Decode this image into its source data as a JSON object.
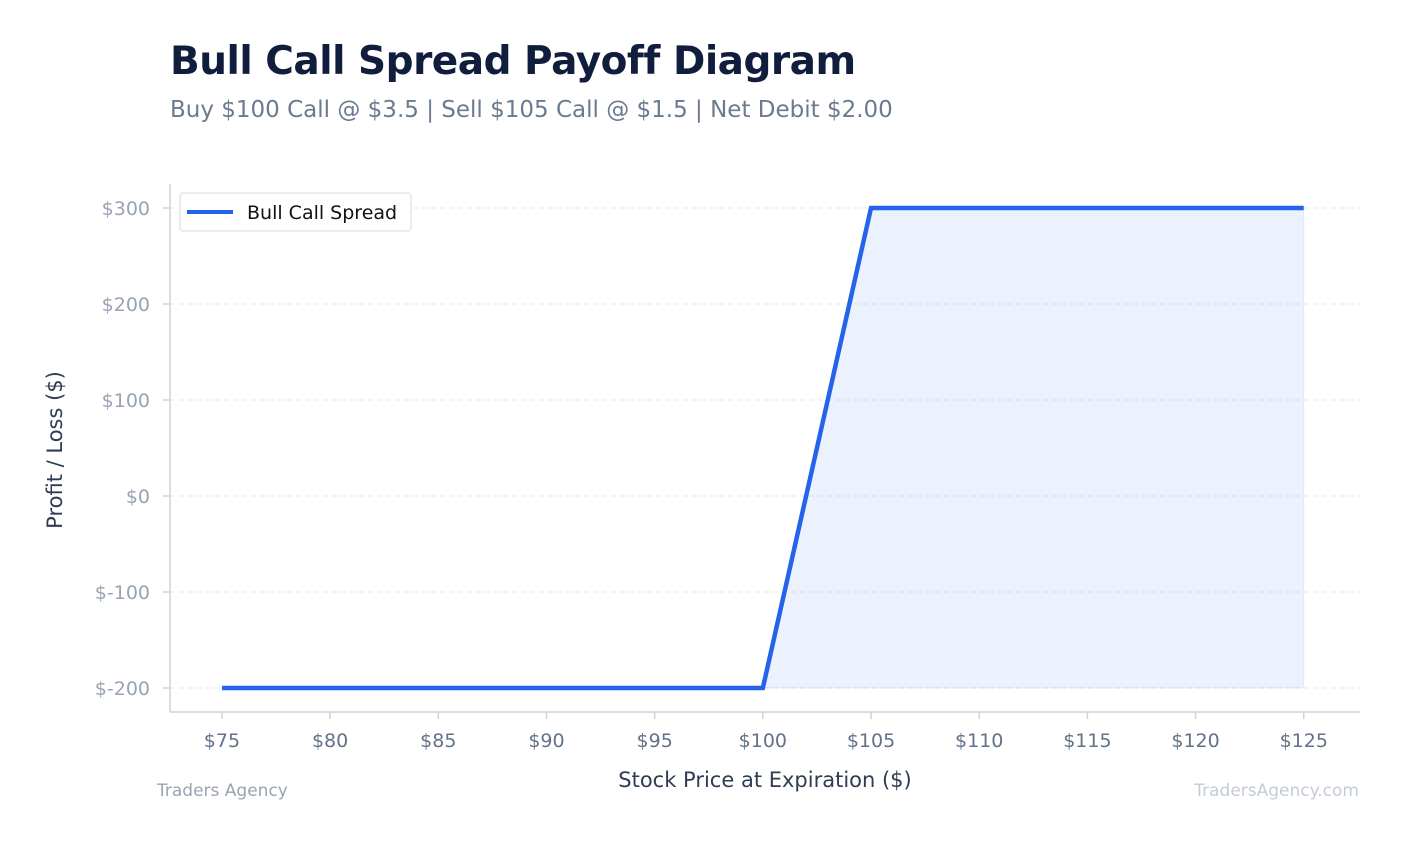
{
  "chart_data": {
    "type": "line",
    "title": "Bull Call Spread Payoff Diagram",
    "subtitle": "Buy $100 Call @ $3.5 | Sell $105 Call @ $1.5 | Net Debit $2.00",
    "xlabel": "Stock Price at Expiration ($)",
    "ylabel": "Profit / Loss ($)",
    "x_ticks": [
      "$75",
      "$80",
      "$85",
      "$90",
      "$95",
      "$100",
      "$105",
      "$110",
      "$115",
      "$120",
      "$125"
    ],
    "y_ticks": [
      "$-200",
      "$-100",
      "$0",
      "$100",
      "$200",
      "$300"
    ],
    "xlim": [
      72.6,
      127.6
    ],
    "ylim": [
      -225,
      325
    ],
    "grid": true,
    "legend_position": "top-left",
    "series": [
      {
        "name": "Bull Call Spread",
        "color": "#2563eb",
        "x": [
          75,
          100,
          105,
          125
        ],
        "y": [
          -200,
          -200,
          300,
          300
        ]
      }
    ],
    "fill": {
      "color": "#2563eb",
      "x": [
        100,
        105,
        125
      ],
      "y": [
        -200,
        300,
        300
      ]
    }
  },
  "footer": {
    "left": "Traders Agency",
    "right": "TradersAgency.com"
  }
}
